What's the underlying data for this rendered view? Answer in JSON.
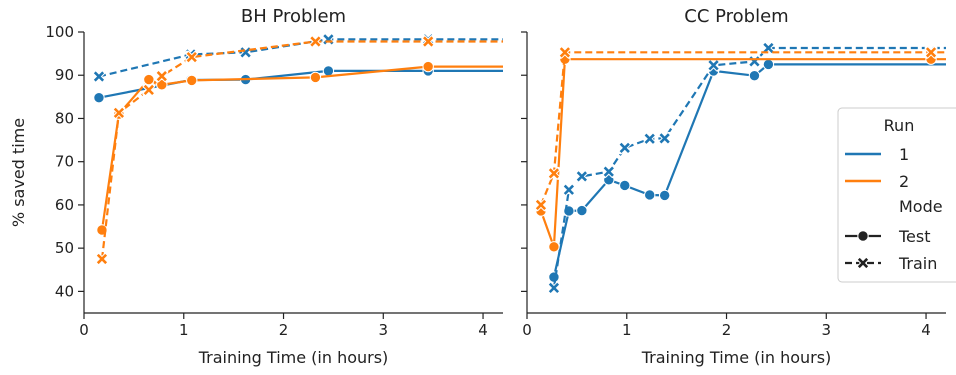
{
  "chart_data": [
    {
      "type": "line",
      "title": "BH Problem",
      "xlabel": "Training Time (in hours)",
      "ylabel": "% saved time",
      "xlim": [
        0,
        4.2
      ],
      "ylim": [
        35,
        100
      ],
      "xticks": [
        0,
        1,
        2,
        3,
        4
      ],
      "yticks": [
        40,
        50,
        60,
        70,
        80,
        90,
        100
      ],
      "grid": false,
      "series": [
        {
          "run": "1",
          "mode": "Test",
          "color": "#1f77b4",
          "x": [
            0.15,
            1.07,
            1.62,
            2.45,
            3.45,
            4.2
          ],
          "y": [
            84.8,
            88.9,
            89.0,
            91.0,
            91.0,
            91.0
          ]
        },
        {
          "run": "1",
          "mode": "Train",
          "color": "#1f77b4",
          "x": [
            0.15,
            1.07,
            1.62,
            2.45,
            3.45,
            4.2
          ],
          "y": [
            89.7,
            94.8,
            95.3,
            98.3,
            98.3,
            98.3
          ]
        },
        {
          "run": "2",
          "mode": "Test",
          "color": "#ff7f0e",
          "x": [
            0.18,
            0.35,
            0.65,
            0.78,
            1.08,
            2.32,
            3.45,
            4.2
          ],
          "y": [
            54.2,
            81.0,
            89.0,
            87.8,
            88.8,
            89.5,
            92.0,
            92.0
          ]
        },
        {
          "run": "2",
          "mode": "Train",
          "color": "#ff7f0e",
          "x": [
            0.18,
            0.35,
            0.65,
            0.78,
            1.08,
            2.32,
            3.45,
            4.2
          ],
          "y": [
            47.5,
            81.3,
            86.6,
            89.8,
            94.2,
            97.8,
            97.8,
            97.8
          ]
        }
      ]
    },
    {
      "type": "line",
      "title": "CC Problem",
      "xlabel": "Training Time (in hours)",
      "ylabel": "",
      "xlim": [
        0,
        4.2
      ],
      "ylim": [
        35,
        100
      ],
      "xticks": [
        0,
        1,
        2,
        3,
        4
      ],
      "yticks": [
        40,
        50,
        60,
        70,
        80,
        90,
        100
      ],
      "grid": false,
      "legend_position": "right",
      "series": [
        {
          "run": "1",
          "mode": "Test",
          "color": "#1f77b4",
          "x": [
            0.27,
            0.42,
            0.55,
            0.82,
            0.98,
            1.23,
            1.38,
            1.87,
            2.28,
            2.42,
            4.2
          ],
          "y": [
            43.3,
            58.6,
            58.7,
            65.8,
            64.5,
            62.3,
            62.2,
            91.0,
            89.9,
            92.5,
            92.5
          ]
        },
        {
          "run": "1",
          "mode": "Train",
          "color": "#1f77b4",
          "x": [
            0.27,
            0.42,
            0.55,
            0.82,
            0.98,
            1.23,
            1.38,
            1.87,
            2.28,
            2.42,
            4.2
          ],
          "y": [
            40.8,
            63.5,
            66.6,
            67.7,
            73.2,
            75.3,
            75.4,
            92.3,
            93.2,
            96.3,
            96.3
          ]
        },
        {
          "run": "2",
          "mode": "Test",
          "color": "#ff7f0e",
          "x": [
            0.14,
            0.27,
            0.38,
            4.05,
            4.2
          ],
          "y": [
            58.6,
            50.3,
            93.7,
            93.7,
            93.7
          ]
        },
        {
          "run": "2",
          "mode": "Train",
          "color": "#ff7f0e",
          "x": [
            0.14,
            0.27,
            0.38,
            4.05,
            4.2
          ],
          "y": [
            60.0,
            67.3,
            95.3,
            95.3,
            95.3
          ]
        }
      ],
      "legend": {
        "run_title": "Run",
        "runs": [
          {
            "label": "1",
            "color": "#1f77b4"
          },
          {
            "label": "2",
            "color": "#ff7f0e"
          }
        ],
        "mode_title": "Mode",
        "modes": [
          {
            "label": "Test",
            "marker": "circle",
            "dash": "solid"
          },
          {
            "label": "Train",
            "marker": "x",
            "dash": "dashed"
          }
        ]
      }
    }
  ]
}
